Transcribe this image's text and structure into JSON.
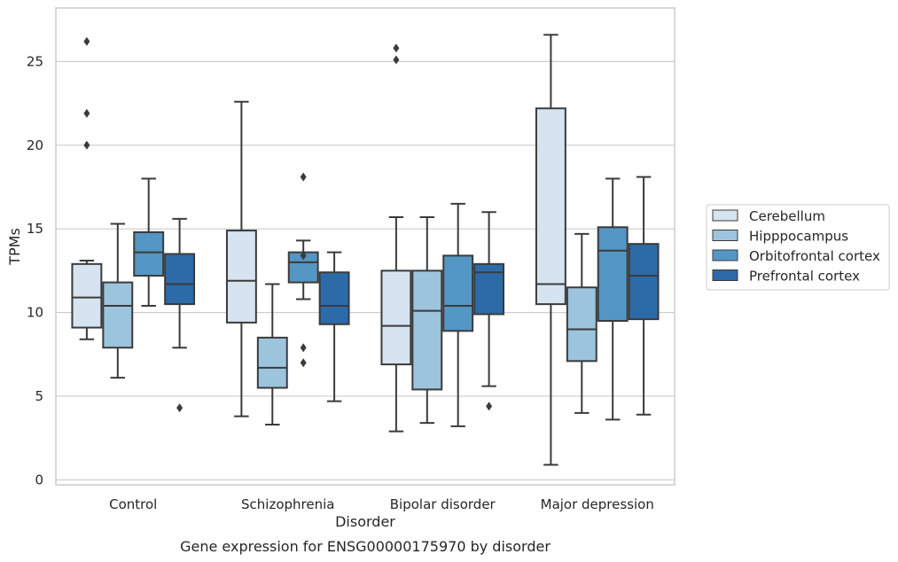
{
  "chart_data": {
    "type": "boxplot",
    "title": "Gene expression for ENSG00000175970 by disorder",
    "xlabel": "Disorder",
    "ylabel": "TPMs",
    "ylim": [
      -0.3,
      28.2
    ],
    "yticks": [
      0,
      5,
      10,
      15,
      20,
      25
    ],
    "grid": "horizontal",
    "legend_position": "right",
    "categories": [
      "Control",
      "Schizophrenia",
      "Bipolar disorder",
      "Major depression"
    ],
    "series": [
      {
        "name": "Cerebellum",
        "color": "#d6e3f1",
        "boxes": [
          {
            "whislo": 8.4,
            "q1": 9.1,
            "med": 10.9,
            "q3": 12.9,
            "whishi": 13.1,
            "fliers": [
              20.0,
              21.9,
              26.2
            ]
          },
          {
            "whislo": 3.8,
            "q1": 9.4,
            "med": 11.9,
            "q3": 14.9,
            "whishi": 22.6,
            "fliers": []
          },
          {
            "whislo": 2.9,
            "q1": 6.9,
            "med": 9.2,
            "q3": 12.5,
            "whishi": 15.7,
            "fliers": [
              25.1,
              25.8
            ]
          },
          {
            "whislo": 0.9,
            "q1": 10.5,
            "med": 11.7,
            "q3": 22.2,
            "whishi": 26.6,
            "fliers": []
          }
        ]
      },
      {
        "name": "Hipppocampus",
        "color": "#9cc4dd",
        "boxes": [
          {
            "whislo": 6.1,
            "q1": 7.9,
            "med": 10.4,
            "q3": 11.8,
            "whishi": 15.3,
            "fliers": []
          },
          {
            "whislo": 3.3,
            "q1": 5.5,
            "med": 6.7,
            "q3": 8.5,
            "whishi": 11.7,
            "fliers": []
          },
          {
            "whislo": 3.4,
            "q1": 5.4,
            "med": 10.1,
            "q3": 12.5,
            "whishi": 15.7,
            "fliers": []
          },
          {
            "whislo": 4.0,
            "q1": 7.1,
            "med": 9.0,
            "q3": 11.5,
            "whishi": 14.7,
            "fliers": []
          }
        ]
      },
      {
        "name": "Orbitofrontal cortex",
        "color": "#5496c4",
        "boxes": [
          {
            "whislo": 10.4,
            "q1": 12.2,
            "med": 13.6,
            "q3": 14.8,
            "whishi": 18.0,
            "fliers": []
          },
          {
            "whislo": 10.8,
            "q1": 11.8,
            "med": 13.0,
            "q3": 13.6,
            "whishi": 14.3,
            "fliers": [
              7.0,
              7.9,
              13.4,
              18.1
            ]
          },
          {
            "whislo": 3.2,
            "q1": 8.9,
            "med": 10.4,
            "q3": 13.4,
            "whishi": 16.5,
            "fliers": []
          },
          {
            "whislo": 3.6,
            "q1": 9.5,
            "med": 13.7,
            "q3": 15.1,
            "whishi": 18.0,
            "fliers": []
          }
        ]
      },
      {
        "name": "Prefrontal cortex",
        "color": "#2d6aa8",
        "boxes": [
          {
            "whislo": 7.9,
            "q1": 10.5,
            "med": 11.7,
            "q3": 13.5,
            "whishi": 15.6,
            "fliers": [
              4.3
            ]
          },
          {
            "whislo": 4.7,
            "q1": 9.3,
            "med": 10.4,
            "q3": 12.4,
            "whishi": 13.6,
            "fliers": []
          },
          {
            "whislo": 5.6,
            "q1": 9.9,
            "med": 12.4,
            "q3": 12.9,
            "whishi": 16.0,
            "fliers": [
              4.4
            ]
          },
          {
            "whislo": 3.9,
            "q1": 9.6,
            "med": 12.2,
            "q3": 14.1,
            "whishi": 18.1,
            "fliers": []
          }
        ]
      }
    ]
  }
}
